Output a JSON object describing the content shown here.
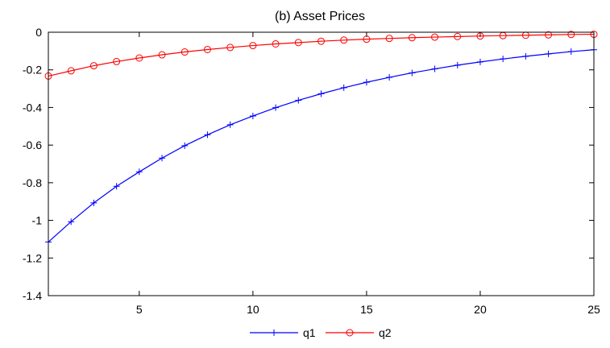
{
  "chart_data": {
    "type": "line",
    "title": "(b) Asset Prices",
    "xlabel": "",
    "ylabel": "",
    "xlim": [
      1,
      25
    ],
    "ylim": [
      -1.4,
      0
    ],
    "xticks": [
      5,
      10,
      15,
      20,
      25
    ],
    "yticks": [
      0,
      -0.2,
      -0.4,
      -0.6,
      -0.8,
      -1,
      -1.2,
      -1.4
    ],
    "ytick_labels": [
      "0",
      "-0.2",
      "-0.4",
      "-0.6",
      "-0.8",
      "-1",
      "-1.2",
      "-1.4"
    ],
    "grid": false,
    "legend_position": "bottom-center",
    "x": [
      1,
      2,
      3,
      4,
      5,
      6,
      7,
      8,
      9,
      10,
      11,
      12,
      13,
      14,
      15,
      16,
      17,
      18,
      19,
      20,
      21,
      22,
      23,
      24,
      25
    ],
    "series": [
      {
        "name": "q1",
        "color": "#0000ff",
        "marker": "plus",
        "values": [
          -1.115,
          -1.007,
          -0.907,
          -0.819,
          -0.742,
          -0.669,
          -0.603,
          -0.545,
          -0.492,
          -0.445,
          -0.401,
          -0.362,
          -0.327,
          -0.295,
          -0.266,
          -0.24,
          -0.216,
          -0.195,
          -0.175,
          -0.158,
          -0.142,
          -0.128,
          -0.115,
          -0.103,
          -0.093
        ]
      },
      {
        "name": "q2",
        "color": "#ff0000",
        "marker": "circle",
        "values": [
          -0.233,
          -0.205,
          -0.178,
          -0.156,
          -0.137,
          -0.12,
          -0.105,
          -0.092,
          -0.081,
          -0.071,
          -0.062,
          -0.055,
          -0.048,
          -0.042,
          -0.037,
          -0.033,
          -0.029,
          -0.026,
          -0.023,
          -0.02,
          -0.018,
          -0.016,
          -0.014,
          -0.012,
          -0.011
        ]
      }
    ]
  }
}
